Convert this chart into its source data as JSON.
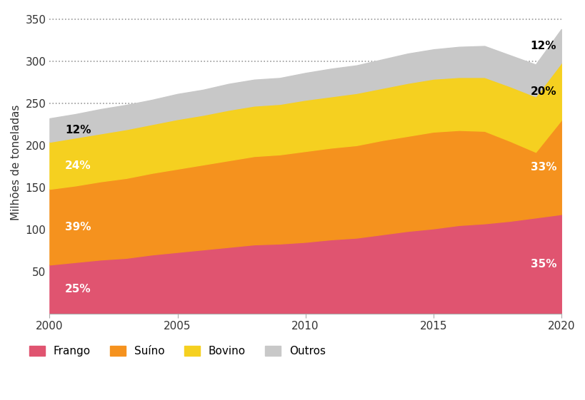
{
  "years": [
    2000,
    2001,
    2002,
    2003,
    2004,
    2005,
    2006,
    2007,
    2008,
    2009,
    2010,
    2011,
    2012,
    2013,
    2014,
    2015,
    2016,
    2017,
    2018,
    2019,
    2020
  ],
  "frango": [
    58,
    61,
    64,
    66,
    70,
    73,
    76,
    79,
    82,
    83,
    85,
    88,
    90,
    94,
    98,
    101,
    105,
    107,
    110,
    114,
    118
  ],
  "suino": [
    90,
    91,
    93,
    95,
    97,
    99,
    101,
    103,
    105,
    106,
    108,
    109,
    110,
    112,
    113,
    115,
    113,
    110,
    95,
    78,
    112
  ],
  "bovino": [
    56,
    57,
    57,
    58,
    58,
    59,
    59,
    60,
    60,
    60,
    61,
    61,
    62,
    62,
    63,
    63,
    63,
    64,
    65,
    66,
    68
  ],
  "outros": [
    28,
    28,
    29,
    29,
    29,
    30,
    30,
    31,
    31,
    31,
    32,
    33,
    33,
    34,
    35,
    35,
    36,
    37,
    37,
    38,
    40
  ],
  "colors": {
    "frango": "#E05470",
    "suino": "#F5921E",
    "bovino": "#F5D020",
    "outros": "#C8C8C8"
  },
  "labels": {
    "frango": "Frango",
    "suino": "Suíno",
    "bovino": "Bovino",
    "outros": "Outros"
  },
  "ylabel": "Milhões de toneladas",
  "annotations_2000": {
    "outros": "12%"
  },
  "annotations_2020": {
    "bovino": "20%",
    "outros": "12%"
  },
  "ann2000_colors": {
    "frango": "white",
    "suino": "white",
    "bovino": "white",
    "outros": "black"
  },
  "ann2020_colors": {
    "frango": "white",
    "suino": "white",
    "bovino": "black",
    "outros": "black"
  },
  "background_color": "#FFFFFF",
  "figsize": [
    8.2,
    5.61
  ],
  "dpi": 100
}
